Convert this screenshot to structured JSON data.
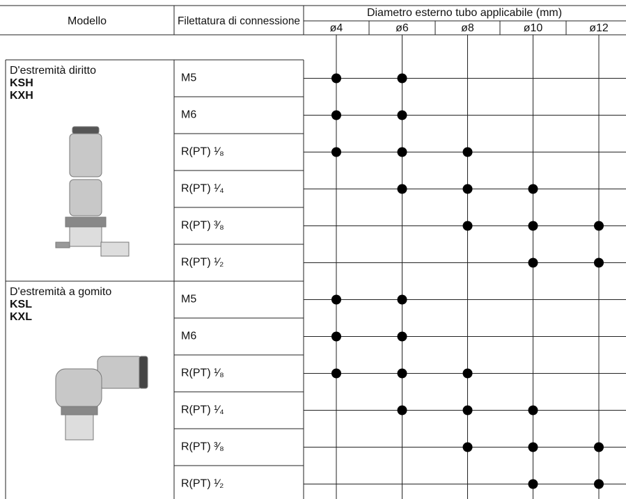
{
  "header": {
    "model": "Modello",
    "thread": "Filettatura di connessione",
    "diameter": "Diametro esterno tubo applicabile (mm)",
    "sizes": [
      "ø4",
      "ø6",
      "ø8",
      "ø10",
      "ø12"
    ]
  },
  "groups": [
    {
      "name": "D'estremità diritto",
      "codes": [
        "KSH",
        "KXH"
      ],
      "rows": [
        {
          "thread": "M5",
          "available": [
            true,
            true,
            false,
            false,
            false
          ]
        },
        {
          "thread": "M6",
          "available": [
            true,
            true,
            false,
            false,
            false
          ]
        },
        {
          "thread": "R(PT) ¹⁄₈",
          "available": [
            true,
            true,
            true,
            false,
            false
          ]
        },
        {
          "thread": "R(PT) ¹⁄₄",
          "available": [
            false,
            true,
            true,
            true,
            false
          ]
        },
        {
          "thread": "R(PT) ³⁄₈",
          "available": [
            false,
            false,
            true,
            true,
            true
          ]
        },
        {
          "thread": "R(PT) ¹⁄₂",
          "available": [
            false,
            false,
            false,
            true,
            true
          ]
        }
      ]
    },
    {
      "name": "D'estremità a gomito",
      "codes": [
        "KSL",
        "KXL"
      ],
      "rows": [
        {
          "thread": "M5",
          "available": [
            true,
            true,
            false,
            false,
            false
          ]
        },
        {
          "thread": "M6",
          "available": [
            true,
            true,
            false,
            false,
            false
          ]
        },
        {
          "thread": "R(PT) ¹⁄₈",
          "available": [
            true,
            true,
            true,
            false,
            false
          ]
        },
        {
          "thread": "R(PT) ¹⁄₄",
          "available": [
            false,
            true,
            true,
            true,
            false
          ]
        },
        {
          "thread": "R(PT) ³⁄₈",
          "available": [
            false,
            false,
            true,
            true,
            true
          ]
        },
        {
          "thread": "R(PT) ¹⁄₂",
          "available": [
            false,
            false,
            false,
            true,
            true
          ]
        }
      ]
    }
  ]
}
